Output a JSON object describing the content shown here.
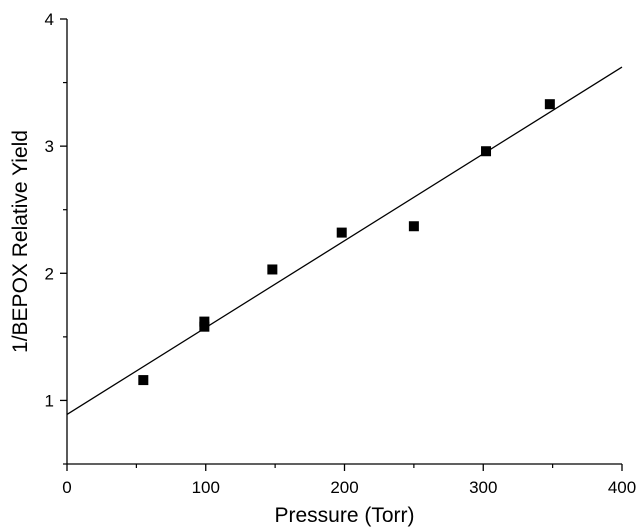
{
  "chart_data": {
    "type": "scatter",
    "title": "",
    "xlabel": "Pressure (Torr)",
    "ylabel": "1/BEPOX Relative Yield",
    "xlim": [
      0,
      400
    ],
    "ylim": [
      0.5,
      4
    ],
    "x_ticks": [
      0,
      100,
      200,
      300,
      400
    ],
    "y_ticks": [
      1,
      2,
      3,
      4
    ],
    "x_tick_labels": [
      "0",
      "100",
      "200",
      "300",
      "400"
    ],
    "y_tick_labels": [
      "1",
      "2",
      "3",
      "4"
    ],
    "grid": false,
    "legend": "none",
    "marker": "square",
    "marker_color": "#000000",
    "points": [
      {
        "x": 55,
        "y": 1.16
      },
      {
        "x": 99,
        "y": 1.62
      },
      {
        "x": 99,
        "y": 1.58
      },
      {
        "x": 148,
        "y": 2.03
      },
      {
        "x": 198,
        "y": 2.32
      },
      {
        "x": 250,
        "y": 2.37
      },
      {
        "x": 302,
        "y": 2.96
      },
      {
        "x": 348,
        "y": 3.33
      }
    ],
    "fit_line": {
      "slope": 0.00683,
      "intercept": 0.89
    }
  }
}
